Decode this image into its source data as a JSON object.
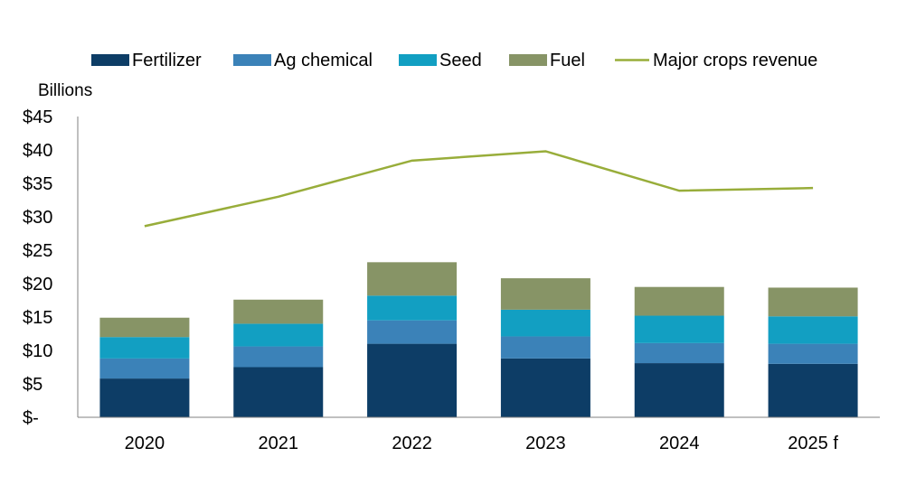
{
  "chart_data": {
    "type": "bar",
    "stacked": true,
    "ylabel": "Billions",
    "categories": [
      "2020",
      "2021",
      "2022",
      "2023",
      "2024",
      "2025 f"
    ],
    "ylim": [
      0,
      45
    ],
    "yticks": [
      0,
      5,
      10,
      15,
      20,
      25,
      30,
      35,
      40,
      45
    ],
    "ytick_labels": [
      "$-",
      "$5",
      "$10",
      "$15",
      "$20",
      "$25",
      "$30",
      "$35",
      "$40",
      "$45"
    ],
    "grid": false,
    "legend": "top",
    "series": [
      {
        "name": "Fertilizer",
        "kind": "bar",
        "color": "#0d3d66",
        "values": [
          5.8,
          7.5,
          11.0,
          8.8,
          8.1,
          8.0
        ]
      },
      {
        "name": "Ag chemical",
        "kind": "bar",
        "color": "#3b82b8",
        "values": [
          3.0,
          3.1,
          3.5,
          3.3,
          3.0,
          3.0
        ]
      },
      {
        "name": "Seed",
        "kind": "bar",
        "color": "#129fc2",
        "values": [
          3.2,
          3.4,
          3.7,
          4.0,
          4.1,
          4.1
        ]
      },
      {
        "name": "Fuel",
        "kind": "bar",
        "color": "#879466",
        "values": [
          2.9,
          3.6,
          5.0,
          4.7,
          4.3,
          4.3
        ]
      },
      {
        "name": "Major crops revenue",
        "kind": "line",
        "color": "#98ad3a",
        "values": [
          28.6,
          33.0,
          38.4,
          39.8,
          33.9,
          34.3
        ]
      }
    ]
  }
}
